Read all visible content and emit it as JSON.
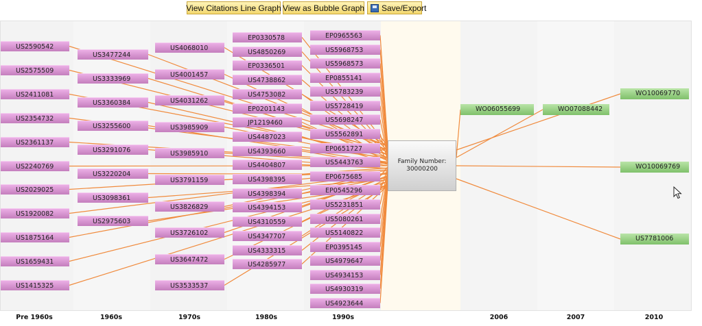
{
  "toolbar": {
    "line_graph_label": "View Citations Line Graph",
    "bubble_graph_label": "View as Bubble Graph",
    "save_label": "Save/Export"
  },
  "family": {
    "label": "Family Number:",
    "number": "30000200"
  },
  "colors": {
    "link": "#f08a3c",
    "cited_node": "#d595cf",
    "citing_node": "#9fd28b"
  },
  "decades": [
    "Pre 1960s",
    "1960s",
    "1970s",
    "1980s",
    "1990s",
    "2006",
    "2007",
    "2010"
  ],
  "cited_columns": [
    [
      "US2590542",
      "US2575509",
      "US2411081",
      "US2354732",
      "US2361137",
      "US2240769",
      "US2029025",
      "US1920082",
      "US1875164",
      "US1659431",
      "US1415325"
    ],
    [
      "US3477244",
      "US3333969",
      "US3360384",
      "US3255600",
      "US3291076",
      "US3220204",
      "US3098361",
      "US2975603"
    ],
    [
      "US4068010",
      "US4001457",
      "US4031262",
      "US3985909",
      "US3985910",
      "US3791159",
      "US3826829",
      "US3726102",
      "US3647472",
      "US3533537"
    ],
    [
      "EP0330578",
      "US4850269",
      "EP0336501",
      "US4738862",
      "US4753082",
      "EP0201143",
      "JP1219460",
      "US4487023",
      "US4393660",
      "US4404807",
      "US4398395",
      "US4398394",
      "US4394153",
      "US4310559",
      "US4347707",
      "US4333315",
      "US4285977"
    ],
    [
      "EP0965563",
      "US5968753",
      "US5968573",
      "EP0855141",
      "US5783239",
      "US5728419",
      "US5698247",
      "US5562891",
      "EP0651727",
      "US5443763",
      "EP0675685",
      "EP0545296",
      "US5231851",
      "US5080261",
      "US5140822",
      "EP0395145",
      "US4979647",
      "US4934153",
      "US4930319",
      "US4923644"
    ]
  ],
  "citing_columns": [
    [
      "WO06055699"
    ],
    [
      "WO07088442"
    ],
    [
      "WO10069770",
      "WO10069769",
      "US7781006"
    ]
  ]
}
